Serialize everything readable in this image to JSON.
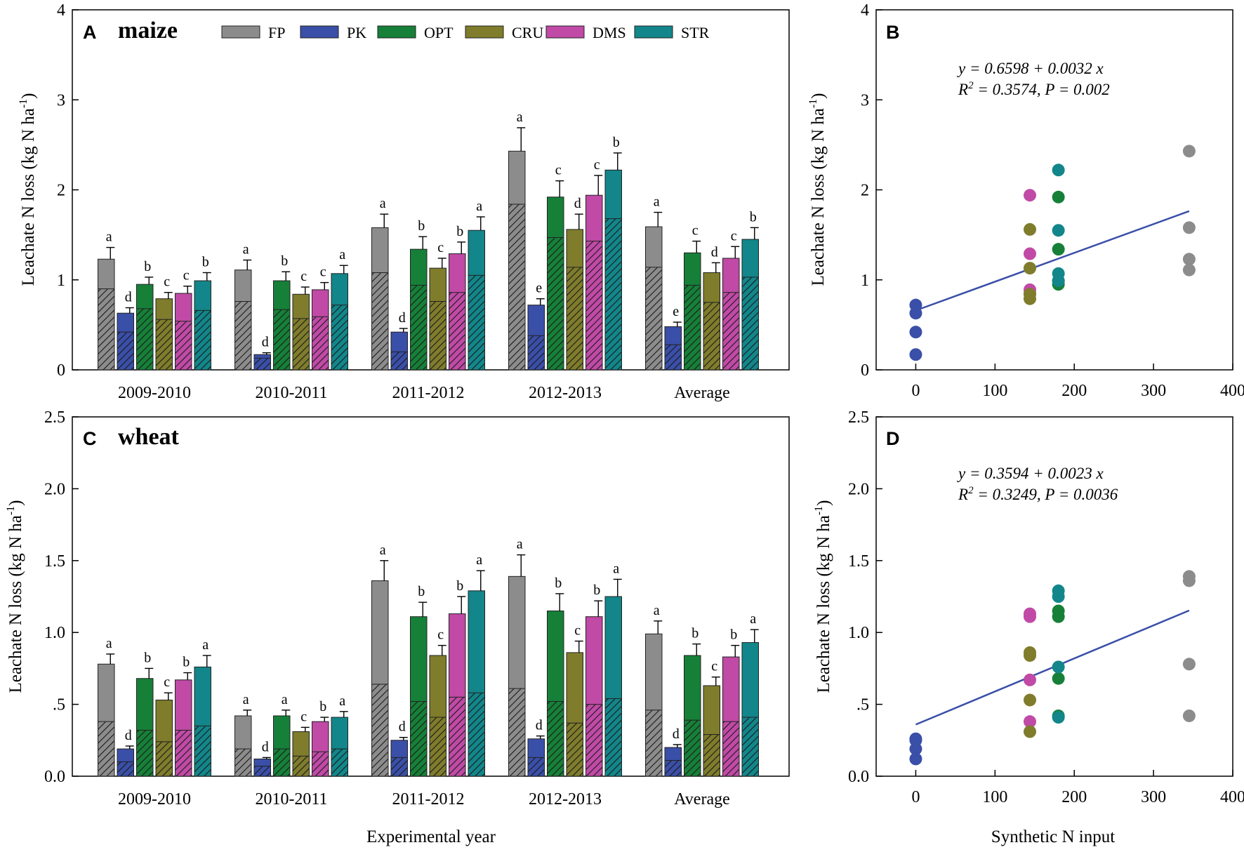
{
  "colors": {
    "FP": "#8c8c8c",
    "PK": "#3a4fa8",
    "OPT": "#168038",
    "CRU": "#7f7c2c",
    "DMS": "#c04aa6",
    "STR": "#12868a",
    "regression_line": "#3a4fa8"
  },
  "chart_data": [
    {
      "id": "A",
      "type": "bar",
      "panel_letter": "A",
      "title": "maize",
      "ylabel": "Leachate N loss (kg N ha-1)",
      "xlabel": "",
      "ylim": [
        0,
        4
      ],
      "yticks": [
        "0",
        "1",
        "2",
        "3",
        "4"
      ],
      "ytick_values": [
        0,
        1,
        2,
        3,
        4
      ],
      "categories": [
        "2009-2010",
        "2010-2011",
        "2011-2012",
        "2012-2013",
        "Average"
      ],
      "legend": [
        "FP",
        "PK",
        "OPT",
        "CRU",
        "DMS",
        "STR"
      ],
      "series": [
        {
          "name": "FP",
          "values": [
            1.23,
            1.11,
            1.58,
            2.43,
            1.59
          ],
          "hatched": [
            0.9,
            0.76,
            1.08,
            1.84,
            1.14
          ],
          "errors": [
            0.13,
            0.11,
            0.15,
            0.26,
            0.16
          ],
          "letters": [
            "a",
            "a",
            "a",
            "a",
            "a"
          ]
        },
        {
          "name": "PK",
          "values": [
            0.63,
            0.17,
            0.42,
            0.72,
            0.48
          ],
          "hatched": [
            0.42,
            0.13,
            0.2,
            0.38,
            0.28
          ],
          "errors": [
            0.06,
            0.02,
            0.04,
            0.07,
            0.05
          ],
          "letters": [
            "d",
            "d",
            "d",
            "e",
            "e"
          ]
        },
        {
          "name": "OPT",
          "values": [
            0.95,
            0.99,
            1.34,
            1.92,
            1.3
          ],
          "hatched": [
            0.68,
            0.67,
            0.94,
            1.47,
            0.94
          ],
          "errors": [
            0.08,
            0.1,
            0.14,
            0.18,
            0.13
          ],
          "letters": [
            "b",
            "b",
            "b",
            "c",
            "c"
          ]
        },
        {
          "name": "CRU",
          "values": [
            0.79,
            0.84,
            1.13,
            1.56,
            1.08
          ],
          "hatched": [
            0.56,
            0.57,
            0.76,
            1.14,
            0.75
          ],
          "errors": [
            0.07,
            0.08,
            0.11,
            0.17,
            0.11
          ],
          "letters": [
            "c",
            "c",
            "c",
            "d",
            "d"
          ]
        },
        {
          "name": "DMS",
          "values": [
            0.85,
            0.89,
            1.29,
            1.94,
            1.24
          ],
          "hatched": [
            0.54,
            0.59,
            0.86,
            1.43,
            0.86
          ],
          "errors": [
            0.08,
            0.08,
            0.13,
            0.22,
            0.13
          ],
          "letters": [
            "c",
            "c",
            "b",
            "c",
            "c"
          ]
        },
        {
          "name": "STR",
          "values": [
            0.99,
            1.07,
            1.55,
            2.22,
            1.45
          ],
          "hatched": [
            0.66,
            0.72,
            1.05,
            1.68,
            1.03
          ],
          "errors": [
            0.09,
            0.09,
            0.15,
            0.19,
            0.13
          ],
          "letters": [
            "b",
            "a",
            "a",
            "b",
            "b"
          ]
        }
      ]
    },
    {
      "id": "B",
      "type": "scatter",
      "panel_letter": "B",
      "title": "",
      "ylabel": "Leachate N loss (kg N ha-1)",
      "xlabel": "",
      "xlim": [
        -50,
        400
      ],
      "ylim": [
        0,
        4
      ],
      "xticks": [
        "0",
        "100",
        "200",
        "300",
        "400"
      ],
      "xtick_values": [
        0,
        100,
        200,
        300,
        400
      ],
      "yticks": [
        "0",
        "1",
        "2",
        "3",
        "4"
      ],
      "ytick_values": [
        0,
        1,
        2,
        3,
        4
      ],
      "equation": "y = 0.6598 + 0.0032 x",
      "r2_label": "R2 = 0.3574, P = 0.002",
      "regression": {
        "intercept": 0.6598,
        "slope": 0.0032,
        "x_range": [
          0,
          345
        ]
      },
      "points": [
        {
          "x": 0,
          "y": 0.72,
          "s": "PK"
        },
        {
          "x": 0,
          "y": 0.63,
          "s": "PK"
        },
        {
          "x": 0,
          "y": 0.42,
          "s": "PK"
        },
        {
          "x": 0,
          "y": 0.17,
          "s": "PK"
        },
        {
          "x": 144,
          "y": 1.94,
          "s": "DMS"
        },
        {
          "x": 144,
          "y": 1.29,
          "s": "DMS"
        },
        {
          "x": 144,
          "y": 0.89,
          "s": "DMS"
        },
        {
          "x": 144,
          "y": 0.85,
          "s": "DMS"
        },
        {
          "x": 144,
          "y": 1.56,
          "s": "CRU"
        },
        {
          "x": 144,
          "y": 1.13,
          "s": "CRU"
        },
        {
          "x": 144,
          "y": 0.84,
          "s": "CRU"
        },
        {
          "x": 144,
          "y": 0.79,
          "s": "CRU"
        },
        {
          "x": 180,
          "y": 1.92,
          "s": "OPT"
        },
        {
          "x": 180,
          "y": 1.34,
          "s": "OPT"
        },
        {
          "x": 180,
          "y": 0.99,
          "s": "OPT"
        },
        {
          "x": 180,
          "y": 0.95,
          "s": "OPT"
        },
        {
          "x": 180,
          "y": 2.22,
          "s": "STR"
        },
        {
          "x": 180,
          "y": 1.55,
          "s": "STR"
        },
        {
          "x": 180,
          "y": 1.07,
          "s": "STR"
        },
        {
          "x": 180,
          "y": 0.99,
          "s": "STR"
        },
        {
          "x": 345,
          "y": 2.43,
          "s": "FP"
        },
        {
          "x": 345,
          "y": 1.58,
          "s": "FP"
        },
        {
          "x": 345,
          "y": 1.23,
          "s": "FP"
        },
        {
          "x": 345,
          "y": 1.11,
          "s": "FP"
        }
      ]
    },
    {
      "id": "C",
      "type": "bar",
      "panel_letter": "C",
      "title": "wheat",
      "ylabel": "Leachate N loss (kg N ha-1)",
      "xlabel": "Experimental year",
      "ylim": [
        0,
        2.5
      ],
      "yticks": [
        "0.0",
        ".5",
        "1.0",
        "1.5",
        "2.0",
        "2.5"
      ],
      "ytick_values": [
        0,
        0.5,
        1.0,
        1.5,
        2.0,
        2.5
      ],
      "categories": [
        "2009-2010",
        "2010-2011",
        "2011-2012",
        "2012-2013",
        "Average"
      ],
      "series": [
        {
          "name": "FP",
          "values": [
            0.78,
            0.42,
            1.36,
            1.39,
            0.99
          ],
          "hatched": [
            0.38,
            0.19,
            0.64,
            0.61,
            0.46
          ],
          "errors": [
            0.07,
            0.04,
            0.14,
            0.15,
            0.09
          ],
          "letters": [
            "a",
            "a",
            "a",
            "a",
            "a"
          ]
        },
        {
          "name": "PK",
          "values": [
            0.19,
            0.12,
            0.25,
            0.26,
            0.2
          ],
          "hatched": [
            0.1,
            0.07,
            0.13,
            0.13,
            0.11
          ],
          "errors": [
            0.02,
            0.01,
            0.02,
            0.02,
            0.02
          ],
          "letters": [
            "d",
            "d",
            "d",
            "d",
            "d"
          ]
        },
        {
          "name": "OPT",
          "values": [
            0.68,
            0.42,
            1.11,
            1.15,
            0.84
          ],
          "hatched": [
            0.32,
            0.19,
            0.52,
            0.52,
            0.39
          ],
          "errors": [
            0.07,
            0.04,
            0.1,
            0.12,
            0.08
          ],
          "letters": [
            "b",
            "a",
            "b",
            "b",
            "b"
          ]
        },
        {
          "name": "CRU",
          "values": [
            0.53,
            0.31,
            0.84,
            0.86,
            0.63
          ],
          "hatched": [
            0.24,
            0.14,
            0.41,
            0.37,
            0.29
          ],
          "errors": [
            0.05,
            0.03,
            0.07,
            0.08,
            0.06
          ],
          "letters": [
            "c",
            "c",
            "c",
            "c",
            "c"
          ]
        },
        {
          "name": "DMS",
          "values": [
            0.67,
            0.38,
            1.13,
            1.11,
            0.83
          ],
          "hatched": [
            0.32,
            0.17,
            0.55,
            0.5,
            0.38
          ],
          "errors": [
            0.05,
            0.03,
            0.12,
            0.11,
            0.08
          ],
          "letters": [
            "b",
            "b",
            "b",
            "b",
            "b"
          ]
        },
        {
          "name": "STR",
          "values": [
            0.76,
            0.41,
            1.29,
            1.25,
            0.93
          ],
          "hatched": [
            0.35,
            0.19,
            0.58,
            0.54,
            0.41
          ],
          "errors": [
            0.08,
            0.04,
            0.14,
            0.12,
            0.09
          ],
          "letters": [
            "a",
            "a",
            "a",
            "a",
            "a"
          ]
        }
      ]
    },
    {
      "id": "D",
      "type": "scatter",
      "panel_letter": "D",
      "title": "",
      "ylabel": "Leachate N loss (kg N ha-1)",
      "xlabel": "Synthetic N input",
      "xlim": [
        -50,
        400
      ],
      "ylim": [
        0,
        2.5
      ],
      "xticks": [
        "0",
        "100",
        "200",
        "300",
        "400"
      ],
      "xtick_values": [
        0,
        100,
        200,
        300,
        400
      ],
      "yticks": [
        "0.0",
        ".5",
        "1.0",
        "1.5",
        "2.0",
        "2.5"
      ],
      "ytick_values": [
        0,
        0.5,
        1.0,
        1.5,
        2.0,
        2.5
      ],
      "equation": "y = 0.3594 + 0.0023 x",
      "r2_label": "R2 = 0.3249, P = 0.0036",
      "regression": {
        "intercept": 0.3594,
        "slope": 0.0023,
        "x_range": [
          0,
          345
        ]
      },
      "points": [
        {
          "x": 0,
          "y": 0.26,
          "s": "PK"
        },
        {
          "x": 0,
          "y": 0.25,
          "s": "PK"
        },
        {
          "x": 0,
          "y": 0.19,
          "s": "PK"
        },
        {
          "x": 0,
          "y": 0.12,
          "s": "PK"
        },
        {
          "x": 144,
          "y": 1.13,
          "s": "DMS"
        },
        {
          "x": 144,
          "y": 1.11,
          "s": "DMS"
        },
        {
          "x": 144,
          "y": 0.67,
          "s": "DMS"
        },
        {
          "x": 144,
          "y": 0.38,
          "s": "DMS"
        },
        {
          "x": 144,
          "y": 0.86,
          "s": "CRU"
        },
        {
          "x": 144,
          "y": 0.84,
          "s": "CRU"
        },
        {
          "x": 144,
          "y": 0.53,
          "s": "CRU"
        },
        {
          "x": 144,
          "y": 0.31,
          "s": "CRU"
        },
        {
          "x": 180,
          "y": 1.15,
          "s": "OPT"
        },
        {
          "x": 180,
          "y": 1.11,
          "s": "OPT"
        },
        {
          "x": 180,
          "y": 0.68,
          "s": "OPT"
        },
        {
          "x": 180,
          "y": 0.42,
          "s": "OPT"
        },
        {
          "x": 180,
          "y": 1.29,
          "s": "STR"
        },
        {
          "x": 180,
          "y": 1.25,
          "s": "STR"
        },
        {
          "x": 180,
          "y": 0.76,
          "s": "STR"
        },
        {
          "x": 180,
          "y": 0.41,
          "s": "STR"
        },
        {
          "x": 345,
          "y": 1.39,
          "s": "FP"
        },
        {
          "x": 345,
          "y": 1.36,
          "s": "FP"
        },
        {
          "x": 345,
          "y": 0.78,
          "s": "FP"
        },
        {
          "x": 345,
          "y": 0.42,
          "s": "FP"
        }
      ]
    }
  ]
}
